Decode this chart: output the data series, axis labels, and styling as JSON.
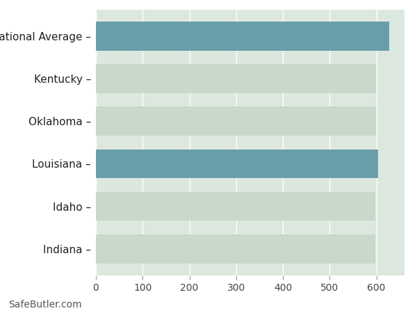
{
  "categories": [
    "Indiana",
    "Idaho",
    "Louisiana",
    "Oklahoma",
    "Kentucky",
    "National Average"
  ],
  "values": [
    597,
    597,
    603,
    599,
    599,
    628
  ],
  "bar_colors": [
    "#c8d9cc",
    "#c8d9cc",
    "#6a9daa",
    "#c8d9cc",
    "#c8d9cc",
    "#6a9daa"
  ],
  "plot_bg_color": "#ffffff",
  "bar_area_bg_color": "#dce8de",
  "grid_color": "#ffffff",
  "xlim": [
    0,
    660
  ],
  "xticks": [
    0,
    100,
    200,
    300,
    400,
    500,
    600
  ],
  "footnote": "SafeButler.com",
  "footnote_fontsize": 10,
  "label_fontsize": 11,
  "tick_fontsize": 10,
  "bar_height": 0.68
}
